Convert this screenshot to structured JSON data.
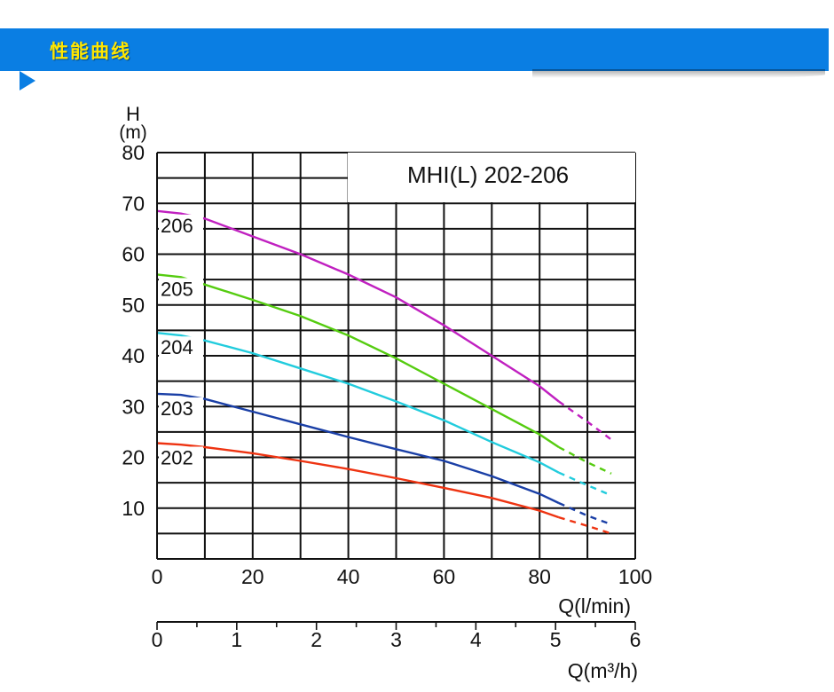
{
  "header": {
    "title": "性能曲线"
  },
  "chart_data": {
    "type": "line",
    "title": "MHI(L) 202-206",
    "ylabel_top": "H",
    "ylabel_unit": "(m)",
    "xlabel": "Q(l/min)",
    "xlabel2": "Q(m³/h)",
    "x_ticks": [
      0,
      20,
      40,
      60,
      80,
      100
    ],
    "x2_ticks": [
      0,
      1,
      2,
      3,
      4,
      5,
      6
    ],
    "y_ticks": [
      10,
      20,
      30,
      40,
      50,
      60,
      70,
      80
    ],
    "xlim": [
      0,
      100
    ],
    "ylim": [
      0,
      80
    ],
    "x2lim": [
      0,
      6
    ],
    "grid": true,
    "series": [
      {
        "name": "206",
        "color": "#c020c0",
        "values": [
          [
            0,
            68.5
          ],
          [
            5,
            68
          ],
          [
            10,
            67
          ],
          [
            20,
            63.5
          ],
          [
            30,
            60
          ],
          [
            40,
            56
          ],
          [
            50,
            51.5
          ],
          [
            60,
            46
          ],
          [
            70,
            40
          ],
          [
            80,
            34
          ],
          [
            84,
            31
          ]
        ],
        "dashed": [
          [
            84,
            31
          ],
          [
            90,
            27
          ],
          [
            95,
            23.5
          ]
        ]
      },
      {
        "name": "205",
        "color": "#55cc10",
        "values": [
          [
            0,
            56
          ],
          [
            5,
            55.5
          ],
          [
            10,
            54
          ],
          [
            20,
            51
          ],
          [
            30,
            47.8
          ],
          [
            40,
            44
          ],
          [
            50,
            39.5
          ],
          [
            60,
            34.5
          ],
          [
            70,
            29.5
          ],
          [
            80,
            24.5
          ],
          [
            84,
            22
          ]
        ],
        "dashed": [
          [
            84,
            22
          ],
          [
            90,
            19
          ],
          [
            95,
            16.8
          ]
        ]
      },
      {
        "name": "204",
        "color": "#22ccdd",
        "values": [
          [
            0,
            44.5
          ],
          [
            5,
            44
          ],
          [
            10,
            43
          ],
          [
            20,
            40.5
          ],
          [
            30,
            37.5
          ],
          [
            40,
            34.5
          ],
          [
            50,
            31
          ],
          [
            60,
            27.3
          ],
          [
            70,
            23
          ],
          [
            80,
            19
          ],
          [
            84,
            17
          ]
        ],
        "dashed": [
          [
            84,
            17
          ],
          [
            90,
            14.5
          ],
          [
            95,
            12.5
          ]
        ]
      },
      {
        "name": "203",
        "color": "#1a3fa6",
        "values": [
          [
            0,
            32.5
          ],
          [
            5,
            32.3
          ],
          [
            10,
            31.5
          ],
          [
            20,
            29
          ],
          [
            30,
            26.5
          ],
          [
            40,
            24
          ],
          [
            50,
            21.6
          ],
          [
            60,
            19.3
          ],
          [
            70,
            16.3
          ],
          [
            80,
            12.8
          ],
          [
            84,
            11
          ]
        ],
        "dashed": [
          [
            84,
            11
          ],
          [
            90,
            8.5
          ],
          [
            95,
            6.8
          ]
        ]
      },
      {
        "name": "202",
        "color": "#ee3311",
        "values": [
          [
            0,
            22.8
          ],
          [
            5,
            22.5
          ],
          [
            10,
            22
          ],
          [
            20,
            20.8
          ],
          [
            30,
            19.3
          ],
          [
            40,
            17.7
          ],
          [
            50,
            15.9
          ],
          [
            60,
            14
          ],
          [
            70,
            12
          ],
          [
            80,
            9.5
          ],
          [
            84,
            8.2
          ]
        ],
        "dashed": [
          [
            84,
            8.2
          ],
          [
            90,
            6.5
          ],
          [
            95,
            5
          ]
        ]
      }
    ]
  }
}
